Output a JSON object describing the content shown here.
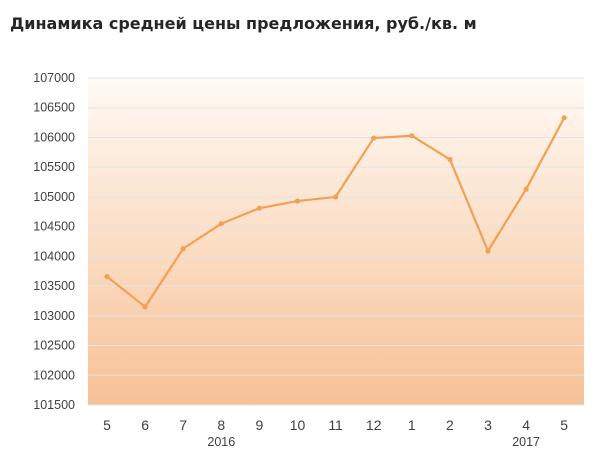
{
  "title": "Динамика средней цены предложения, руб./кв. м",
  "colors": {
    "line": "#f2a052",
    "grid": "#e3e3e3",
    "plot_top": "#fffaf5",
    "plot_bottom": "#f7c196"
  },
  "chart_data": {
    "type": "line",
    "categories": [
      "5",
      "6",
      "7",
      "8",
      "9",
      "10",
      "11",
      "12",
      "1",
      "2",
      "3",
      "4",
      "5"
    ],
    "year_labels": [
      {
        "label": "2016",
        "category_index": 3
      },
      {
        "label": "2017",
        "category_index": 11
      }
    ],
    "series": [
      {
        "values": [
          103660,
          103150,
          104130,
          104550,
          104810,
          104930,
          105000,
          105990,
          106030,
          105630,
          104090,
          105130,
          106330
        ]
      }
    ],
    "ylim": [
      101500,
      107000
    ],
    "yticks": [
      101500,
      102000,
      102500,
      103000,
      103500,
      104000,
      104500,
      105000,
      105500,
      106000,
      106500,
      107000
    ],
    "grid": true,
    "legend": "none"
  }
}
